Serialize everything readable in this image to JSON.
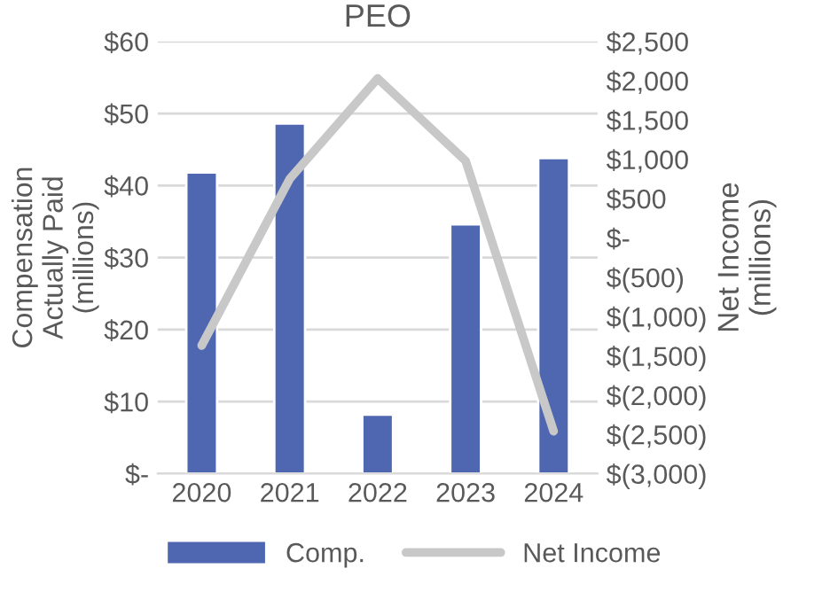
{
  "chart_data": {
    "type": "bar",
    "title": "PEO",
    "ylabel": "Compensation\nActually Paid\n(millions)",
    "y2label": "Net Income\n(millions)",
    "categories": [
      "2020",
      "2021",
      "2022",
      "2023",
      "2024"
    ],
    "series": [
      {
        "name": "Comp.",
        "color": "#4f66b0",
        "values": [
          41.8,
          48.6,
          8.2,
          34.6,
          43.8
        ]
      },
      {
        "name": "Net Income",
        "type": "line",
        "axis": "y2",
        "color": "#c8c8c8",
        "values": [
          -1370,
          750,
          2030,
          980,
          -2460
        ]
      }
    ],
    "ylim": [
      0,
      60
    ],
    "yticks": [
      {
        "value": 0,
        "label": "$-"
      },
      {
        "value": 10,
        "label": "$10"
      },
      {
        "value": 20,
        "label": "$20"
      },
      {
        "value": 30,
        "label": "$30"
      },
      {
        "value": 40,
        "label": "$40"
      },
      {
        "value": 50,
        "label": "$50"
      },
      {
        "value": 60,
        "label": "$60"
      }
    ],
    "y2lim": [
      -3000,
      2500
    ],
    "y2ticks": [
      {
        "value": -3000,
        "label": "$(3,000)"
      },
      {
        "value": -2500,
        "label": "$(2,500)"
      },
      {
        "value": -2000,
        "label": "$(2,000)"
      },
      {
        "value": -1500,
        "label": "$(1,500)"
      },
      {
        "value": -1000,
        "label": "$(1,000)"
      },
      {
        "value": -500,
        "label": "$(500)"
      },
      {
        "value": 0,
        "label": "$-"
      },
      {
        "value": 500,
        "label": "$500"
      },
      {
        "value": 1000,
        "label": "$1,000"
      },
      {
        "value": 1500,
        "label": "$1,500"
      },
      {
        "value": 2000,
        "label": "$2,000"
      },
      {
        "value": 2500,
        "label": "$2,500"
      }
    ],
    "grid": "y",
    "legend": "bottom"
  }
}
